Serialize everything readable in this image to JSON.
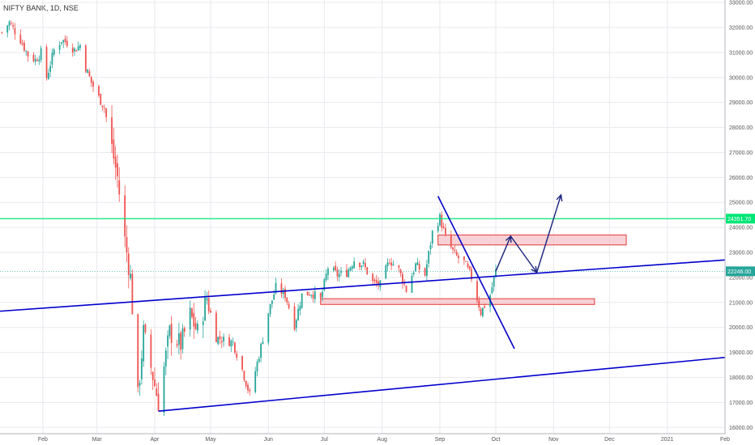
{
  "header": {
    "title": "NIFTY BANK, 1D, NSE"
  },
  "colors": {
    "up": "#26a69a",
    "down": "#ef5350",
    "trendline": "#0000cc",
    "hline": "#00e676",
    "zone_fill": "#f5c6cb",
    "zone_stroke": "#e53935",
    "arrow": "#1a237e",
    "grid": "#e9e9ef"
  },
  "chart_data": {
    "type": "candlestick",
    "title": "NIFTY BANK, 1D, NSE",
    "y_ticks": [
      16000,
      17000,
      18000,
      19000,
      20000,
      21000,
      22000,
      23000,
      24000,
      25000,
      26000,
      27000,
      28000,
      29000,
      30000,
      31000,
      32000,
      33000
    ],
    "y_tick_labels": [
      "16000.00",
      "17000.00",
      "18000.00",
      "19000.00",
      "20000.00",
      "21000.00",
      "22000.00",
      "23000.00",
      "24000.00",
      "25000.00",
      "26000.00",
      "27000.00",
      "28000.00",
      "29000.00",
      "30000.00",
      "31000.00",
      "32000.00",
      "33000.00"
    ],
    "x_labels": [
      "Feb",
      "Mar",
      "Apr",
      "May",
      "Jun",
      "Jul",
      "Aug",
      "Sep",
      "Oct",
      "Nov",
      "Dec",
      "2021",
      "Feb"
    ],
    "x_label_dates": [
      "2020-02-01",
      "2020-03-01",
      "2020-04-01",
      "2020-05-01",
      "2020-06-01",
      "2020-07-01",
      "2020-08-01",
      "2020-09-01",
      "2020-10-01",
      "2020-11-01",
      "2020-12-01",
      "2021-01-01",
      "2021-02-01"
    ],
    "ylim": [
      15750,
      33100
    ],
    "xlim": [
      "2020-01-09",
      "2021-02-01"
    ],
    "last_price": {
      "label": "22246.00",
      "value": 22246
    },
    "horizontal_line": {
      "label": "24351.70",
      "value": 24351.7
    },
    "close_series": [
      [
        "2020-01-10",
        31800
      ],
      [
        "2020-01-14",
        32200
      ],
      [
        "2020-01-20",
        31500
      ],
      [
        "2020-01-24",
        30900
      ],
      [
        "2020-01-28",
        30700
      ],
      [
        "2020-01-31",
        31000
      ],
      [
        "2020-02-03",
        30000
      ],
      [
        "2020-02-07",
        31100
      ],
      [
        "2020-02-11",
        31500
      ],
      [
        "2020-02-14",
        31400
      ],
      [
        "2020-02-18",
        31100
      ],
      [
        "2020-02-21",
        31300
      ],
      [
        "2020-02-24",
        30400
      ],
      [
        "2020-02-27",
        29800
      ],
      [
        "2020-03-02",
        29200
      ],
      [
        "2020-03-05",
        28800
      ],
      [
        "2020-03-09",
        27200
      ],
      [
        "2020-03-12",
        26000
      ],
      [
        "2020-03-16",
        23500
      ],
      [
        "2020-03-19",
        22000
      ],
      [
        "2020-03-23",
        17200
      ],
      [
        "2020-03-26",
        19800
      ],
      [
        "2020-03-30",
        18400
      ],
      [
        "2020-04-03",
        17000
      ],
      [
        "2020-04-09",
        19800
      ],
      [
        "2020-04-15",
        19300
      ],
      [
        "2020-04-20",
        20500
      ],
      [
        "2020-04-24",
        19800
      ],
      [
        "2020-04-29",
        21200
      ],
      [
        "2020-05-04",
        19600
      ],
      [
        "2020-05-08",
        19500
      ],
      [
        "2020-05-13",
        19400
      ],
      [
        "2020-05-18",
        18300
      ],
      [
        "2020-05-22",
        17300
      ],
      [
        "2020-05-27",
        18900
      ],
      [
        "2020-06-01",
        20600
      ],
      [
        "2020-06-05",
        21600
      ],
      [
        "2020-06-10",
        21300
      ],
      [
        "2020-06-15",
        20100
      ],
      [
        "2020-06-19",
        21300
      ],
      [
        "2020-06-24",
        21400
      ],
      [
        "2020-06-29",
        21100
      ],
      [
        "2020-07-03",
        22400
      ],
      [
        "2020-07-08",
        22100
      ],
      [
        "2020-07-13",
        22200
      ],
      [
        "2020-07-17",
        22700
      ],
      [
        "2020-07-22",
        22500
      ],
      [
        "2020-07-27",
        21800
      ],
      [
        "2020-07-31",
        21700
      ],
      [
        "2020-08-05",
        22700
      ],
      [
        "2020-08-10",
        22300
      ],
      [
        "2020-08-14",
        21500
      ],
      [
        "2020-08-19",
        22500
      ],
      [
        "2020-08-24",
        22100
      ],
      [
        "2020-08-28",
        23800
      ],
      [
        "2020-09-01",
        24400
      ],
      [
        "2020-09-04",
        23600
      ],
      [
        "2020-09-09",
        22900
      ],
      [
        "2020-09-14",
        22600
      ],
      [
        "2020-09-18",
        22000
      ],
      [
        "2020-09-23",
        20600
      ],
      [
        "2020-09-28",
        21300
      ],
      [
        "2020-10-01",
        22246
      ]
    ],
    "trendlines": [
      {
        "from": [
          "2020-01-09",
          20650
        ],
        "to": [
          "2021-02-01",
          22700
        ]
      },
      {
        "from": [
          "2020-04-03",
          16650
        ],
        "to": [
          "2021-02-01",
          18800
        ]
      },
      {
        "from": [
          "2020-08-31",
          25250
        ],
        "to": [
          "2020-10-11",
          19150
        ]
      }
    ],
    "zones": [
      {
        "from": "2020-08-31",
        "to": "2020-12-10",
        "low": 23300,
        "high": 23700
      },
      {
        "from": "2020-06-29",
        "to": "2020-11-23",
        "low": 20920,
        "high": 21150
      }
    ],
    "projection_path": [
      [
        "2020-10-01",
        22246
      ],
      [
        "2020-10-09",
        23650
      ],
      [
        "2020-10-23",
        22200
      ],
      [
        "2020-11-05",
        25300
      ]
    ]
  }
}
